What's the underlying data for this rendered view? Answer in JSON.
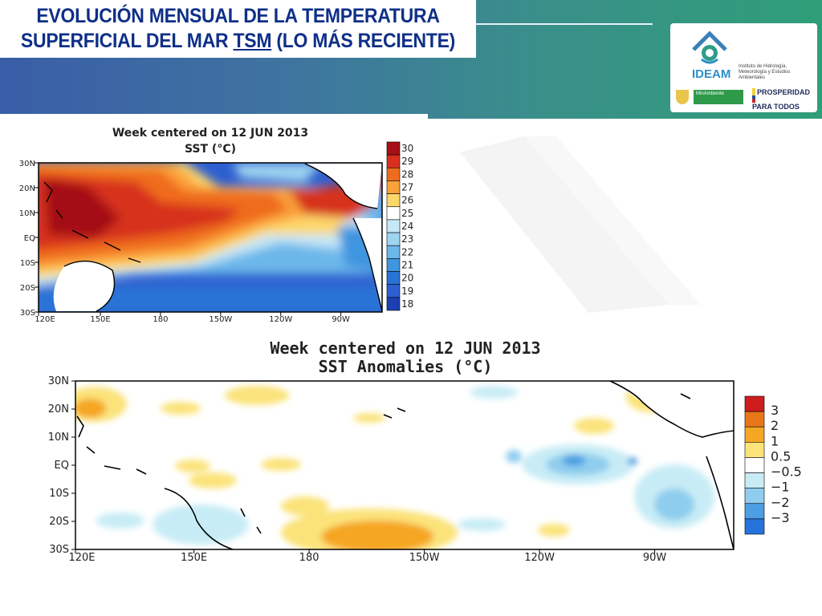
{
  "title": {
    "line1": "EVOLUCIÓN MENSUAL DE LA TEMPERATURA",
    "line2_prefix": "SUPERFICIAL DEL MAR ",
    "line2_tsm": "TSM",
    "line2_suffix": " (LO MÁS RECIENTE)"
  },
  "logos": {
    "ideam_name": "IDEAM",
    "ideam_subtitle": "Instituto de Hidrología, Meteorología y Estudios Ambientales",
    "ministerio": "MinAmbiente",
    "prosperidad": "PROSPERIDAD PARA TODOS"
  },
  "chart_data": [
    {
      "type": "heatmap",
      "title": "Week centered on 12 JUN 2013",
      "subtitle": "SST (°C)",
      "x_ticks": [
        "120E",
        "150E",
        "180",
        "150W",
        "120W",
        "90W"
      ],
      "y_ticks": [
        "30N",
        "20N",
        "10N",
        "EQ",
        "10S",
        "20S",
        "30S"
      ],
      "colorbar": [
        {
          "label": "30",
          "color": "#a50f15"
        },
        {
          "label": "29",
          "color": "#d7301f"
        },
        {
          "label": "28",
          "color": "#ef6c1c"
        },
        {
          "label": "27",
          "color": "#fba23a"
        },
        {
          "label": "26",
          "color": "#fdd76a"
        },
        {
          "label": "25",
          "color": "#ffffff"
        },
        {
          "label": "24",
          "color": "#c6e8f7"
        },
        {
          "label": "23",
          "color": "#9ed4f0"
        },
        {
          "label": "22",
          "color": "#6cb7ea"
        },
        {
          "label": "21",
          "color": "#3f95e0"
        },
        {
          "label": "20",
          "color": "#2a73d6"
        },
        {
          "label": "19",
          "color": "#2d5fd0"
        },
        {
          "label": "18",
          "color": "#1c3fb4"
        }
      ]
    },
    {
      "type": "heatmap",
      "title": "Week centered on 12 JUN 2013",
      "subtitle": "SST Anomalies (°C)",
      "x_ticks": [
        "120E",
        "150E",
        "180",
        "150W",
        "120W",
        "90W"
      ],
      "y_ticks": [
        "30N",
        "20N",
        "10N",
        "EQ",
        "10S",
        "20S",
        "30S"
      ],
      "colorbar": [
        {
          "label": "3",
          "color": "#cf1d1d"
        },
        {
          "label": "2",
          "color": "#e8771a"
        },
        {
          "label": "1",
          "color": "#f5a623"
        },
        {
          "label": "0.5",
          "color": "#fbe37a"
        },
        {
          "label": "−0.5",
          "color": "#ffffff"
        },
        {
          "label": "−1",
          "color": "#c8ecf6"
        },
        {
          "label": "−2",
          "color": "#8fcdee"
        },
        {
          "label": "−3",
          "color": "#4c9fe3"
        },
        {
          "label": "",
          "color": "#2673db"
        }
      ]
    }
  ]
}
